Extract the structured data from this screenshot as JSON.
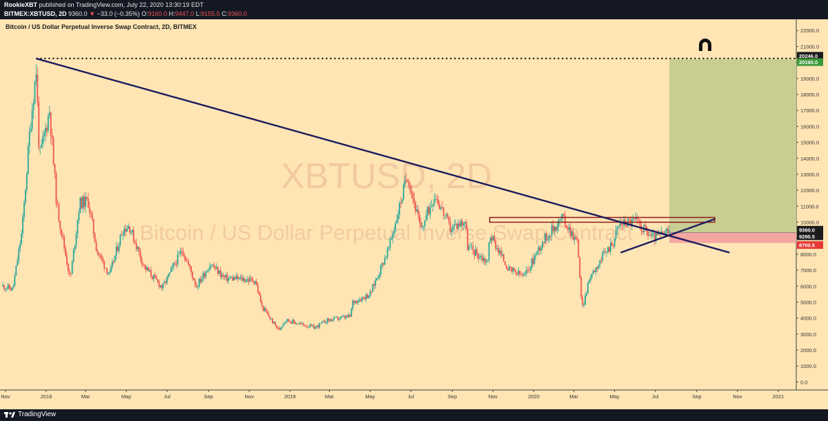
{
  "header": {
    "author": "RookieXBT",
    "published_text": "published on TradingView.com, July 22, 2020 13:30:19 EDT",
    "symbol": "BITMEX:XBTUSD, 2D",
    "last_price": "9360.0",
    "change_arrow": "▼",
    "change": "−33.0 (−0.35%)",
    "open_label": "O:",
    "open": "9160.0",
    "high_label": "H:",
    "high": "9447.0",
    "low_label": "L:",
    "low": "9155.5",
    "close_label": "C:",
    "close": "9360.0"
  },
  "footer": {
    "brand": "TradingView"
  },
  "colors": {
    "chart_bg": "#ffe5b4",
    "up_candle": "#26a69a",
    "down_candle": "#ef5350",
    "trendline": "#1a1a5c",
    "resistance_box": "#8b1a1a",
    "target_zone": "#c8cd92",
    "stop_zone": "#f4a6a0",
    "price_badge_dark": "#1c1c1c",
    "price_badge_green": "#3f9a3a",
    "price_badge_red": "#e53935"
  },
  "chart_data": {
    "type": "candlestick",
    "title": "Bitcoin / US Dollar Perpetual Inverse Swap Contract, 2D, BITMEX",
    "watermark_symbol": "XBTUSD, 2D",
    "watermark_name": "Bitcoin / US Dollar Perpetual Inverse Swap Contract",
    "ylim": [
      -500,
      22700
    ],
    "y_ticks": [
      "0.0",
      "1000.0",
      "2000.0",
      "3000.0",
      "4000.0",
      "5000.0",
      "6000.0",
      "7000.0",
      "8000.0",
      "9000.0",
      "10000.0",
      "11000.0",
      "12000.0",
      "13000.0",
      "14000.0",
      "15000.0",
      "16000.0",
      "17000.0",
      "18000.0",
      "19000.0",
      "20000.0",
      "21000.0",
      "22000.0"
    ],
    "x_range": [
      "2017-10-28",
      "2021-01-28"
    ],
    "x_ticks": [
      {
        "label": "Nov",
        "date": "2017-11-01"
      },
      {
        "label": "2018",
        "date": "2018-01-01"
      },
      {
        "label": "Mar",
        "date": "2018-03-01"
      },
      {
        "label": "May",
        "date": "2018-05-01"
      },
      {
        "label": "Jul",
        "date": "2018-07-01"
      },
      {
        "label": "Sep",
        "date": "2018-09-01"
      },
      {
        "label": "Nov",
        "date": "2018-11-01"
      },
      {
        "label": "2019",
        "date": "2019-01-01"
      },
      {
        "label": "Mar",
        "date": "2019-03-01"
      },
      {
        "label": "May",
        "date": "2019-05-01"
      },
      {
        "label": "Jul",
        "date": "2019-07-01"
      },
      {
        "label": "Sep",
        "date": "2019-09-01"
      },
      {
        "label": "Nov",
        "date": "2019-11-01"
      },
      {
        "label": "2020",
        "date": "2020-01-01"
      },
      {
        "label": "Mar",
        "date": "2020-03-01"
      },
      {
        "label": "May",
        "date": "2020-05-01"
      },
      {
        "label": "Jul",
        "date": "2020-07-01"
      },
      {
        "label": "Sep",
        "date": "2020-09-01"
      },
      {
        "label": "Nov",
        "date": "2020-11-01"
      },
      {
        "label": "2021",
        "date": "2021-01-01"
      }
    ],
    "price_path": [
      [
        "2017-10-28",
        6000
      ],
      [
        "2017-11-12",
        5800
      ],
      [
        "2017-11-26",
        9500
      ],
      [
        "2017-12-08",
        16000
      ],
      [
        "2017-12-17",
        19500
      ],
      [
        "2017-12-22",
        14000
      ],
      [
        "2018-01-06",
        17000
      ],
      [
        "2018-01-17",
        11000
      ],
      [
        "2018-02-06",
        6400
      ],
      [
        "2018-02-20",
        11200
      ],
      [
        "2018-03-05",
        11300
      ],
      [
        "2018-03-18",
        8200
      ],
      [
        "2018-04-06",
        6700
      ],
      [
        "2018-04-25",
        9500
      ],
      [
        "2018-05-05",
        9800
      ],
      [
        "2018-05-28",
        7200
      ],
      [
        "2018-06-24",
        5900
      ],
      [
        "2018-07-24",
        8300
      ],
      [
        "2018-08-14",
        6000
      ],
      [
        "2018-09-04",
        7400
      ],
      [
        "2018-09-25",
        6500
      ],
      [
        "2018-10-20",
        6450
      ],
      [
        "2018-11-10",
        6350
      ],
      [
        "2018-11-20",
        4700
      ],
      [
        "2018-12-15",
        3250
      ],
      [
        "2018-12-25",
        3900
      ],
      [
        "2019-01-10",
        3700
      ],
      [
        "2019-02-07",
        3400
      ],
      [
        "2019-02-25",
        3850
      ],
      [
        "2019-04-01",
        4100
      ],
      [
        "2019-04-05",
        5000
      ],
      [
        "2019-05-01",
        5500
      ],
      [
        "2019-05-30",
        8500
      ],
      [
        "2019-06-26",
        13000
      ],
      [
        "2019-07-16",
        9500
      ],
      [
        "2019-08-06",
        11800
      ],
      [
        "2019-08-29",
        9600
      ],
      [
        "2019-09-20",
        10100
      ],
      [
        "2019-09-24",
        8500
      ],
      [
        "2019-10-24",
        7500
      ],
      [
        "2019-10-27",
        9300
      ],
      [
        "2019-11-25",
        7000
      ],
      [
        "2019-12-18",
        6600
      ],
      [
        "2020-01-14",
        8800
      ],
      [
        "2020-02-13",
        10300
      ],
      [
        "2020-03-07",
        8700
      ],
      [
        "2020-03-13",
        4500
      ],
      [
        "2020-03-26",
        6700
      ],
      [
        "2020-04-29",
        8800
      ],
      [
        "2020-05-08",
        9900
      ],
      [
        "2020-06-01",
        10100
      ],
      [
        "2020-06-27",
        9050
      ],
      [
        "2020-07-22",
        9360
      ]
    ],
    "trendlines": [
      {
        "from": [
          "2017-12-17",
          20246
        ],
        "to": [
          "2020-10-20",
          8100
        ]
      },
      {
        "from": [
          "2020-05-10",
          8100
        ],
        "to": [
          "2020-09-28",
          10200
        ]
      }
    ],
    "horizontal_line": {
      "value": 20246.0,
      "from": "2017-12-17",
      "style": "dotted"
    },
    "resistance_box": {
      "from": "2019-10-27",
      "to": "2020-09-28",
      "y1": 10000,
      "y2": 10300
    },
    "position": {
      "start": "2020-07-22",
      "entry": 9360.0,
      "target": 20190.0,
      "stop": 8700.5
    },
    "price_badges": [
      "20246.0",
      "20190.0",
      "9360.0",
      "9290.5",
      "8700.5"
    ],
    "magnet_icon": "magnet-icon"
  }
}
